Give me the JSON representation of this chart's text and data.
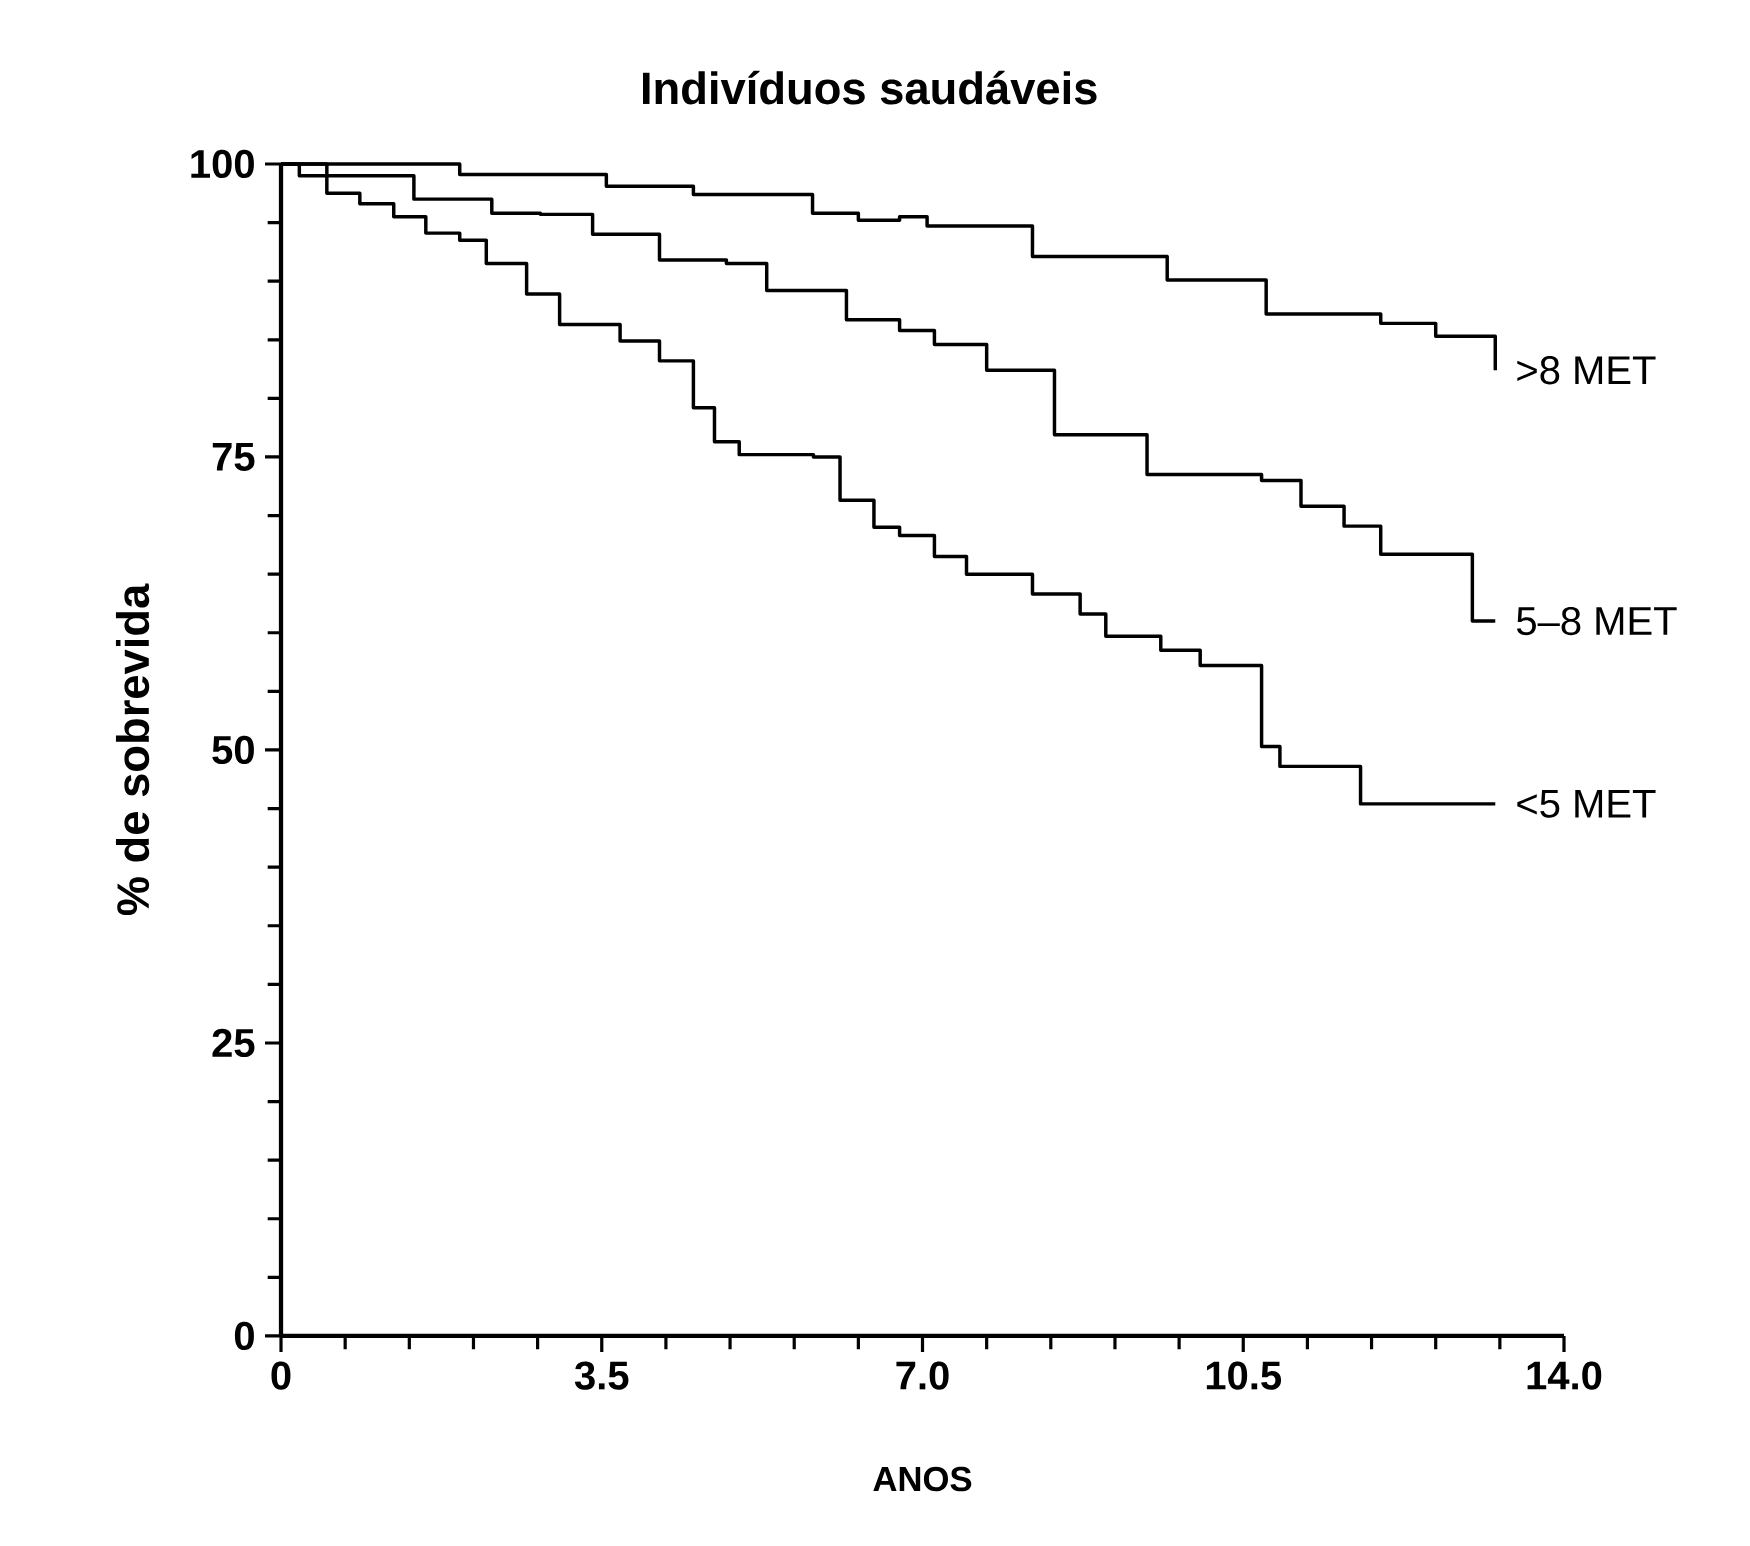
{
  "chart_data": {
    "type": "step",
    "title": "Indivíduos saudáveis",
    "xlabel": "ANOS",
    "ylabel": "% de sobrevida",
    "xlim": [
      0,
      14
    ],
    "ylim": [
      0,
      100
    ],
    "xticks": [
      0,
      {
        "value": 3.5,
        "label": "3.5"
      },
      {
        "value": 7,
        "label": "7.0"
      },
      {
        "value": 10.5,
        "label": "10.5"
      },
      {
        "value": 14,
        "label": "14.0"
      }
    ],
    "yticks": [
      0,
      25,
      50,
      75,
      100
    ],
    "grid": false,
    "legend": false,
    "marker": "none",
    "line_style": "solid",
    "series": [
      {
        "name": ">8 MET",
        "color": "#000000",
        "x": [
          0,
          1.95,
          3.55,
          4.5,
          5.8,
          6.3,
          6.75,
          7.05,
          8.2,
          9.67,
          10.75,
          12.0,
          12.6,
          13.25
        ],
        "values": [
          100,
          99.1,
          98.1,
          97.4,
          95.8,
          95.2,
          95.5,
          94.7,
          92.1,
          90.1,
          87.2,
          86.4,
          85.3,
          82.4
        ]
      },
      {
        "name": "5–8 MET",
        "color": "#000000",
        "x": [
          0,
          0.5,
          1.45,
          2.3,
          2.83,
          3.4,
          4.13,
          4.86,
          5.3,
          6.17,
          6.75,
          7.13,
          7.7,
          8.44,
          9.45,
          10.7,
          11.13,
          11.6,
          12.0,
          13.0,
          13.25
        ],
        "values": [
          100,
          99,
          97,
          95.8,
          95.7,
          94,
          91.8,
          91.5,
          89.2,
          86.7,
          85.8,
          84.6,
          82.4,
          76.9,
          73.5,
          73,
          70.8,
          69.1,
          66.7,
          61,
          61
        ]
      },
      {
        "name": "<5 MET",
        "color": "#000000",
        "x": [
          0,
          0.2,
          0.5,
          0.86,
          1.23,
          1.58,
          1.95,
          2.24,
          2.68,
          3.04,
          3.7,
          4.13,
          4.5,
          4.73,
          5.0,
          5.81,
          6.1,
          6.47,
          6.75,
          7.13,
          7.48,
          8.2,
          8.72,
          9.0,
          9.6,
          10.03,
          10.7,
          10.9,
          11.78,
          13.25
        ],
        "values": [
          100,
          99,
          97.5,
          96.6,
          95.5,
          94.1,
          93.5,
          91.5,
          88.9,
          86.3,
          84.9,
          83.2,
          79.2,
          76.3,
          75.2,
          75,
          71.3,
          69,
          68.3,
          66.5,
          65,
          63.3,
          61.6,
          59.7,
          58.5,
          57.2,
          50.3,
          48.6,
          45.4,
          45.4
        ]
      }
    ]
  }
}
